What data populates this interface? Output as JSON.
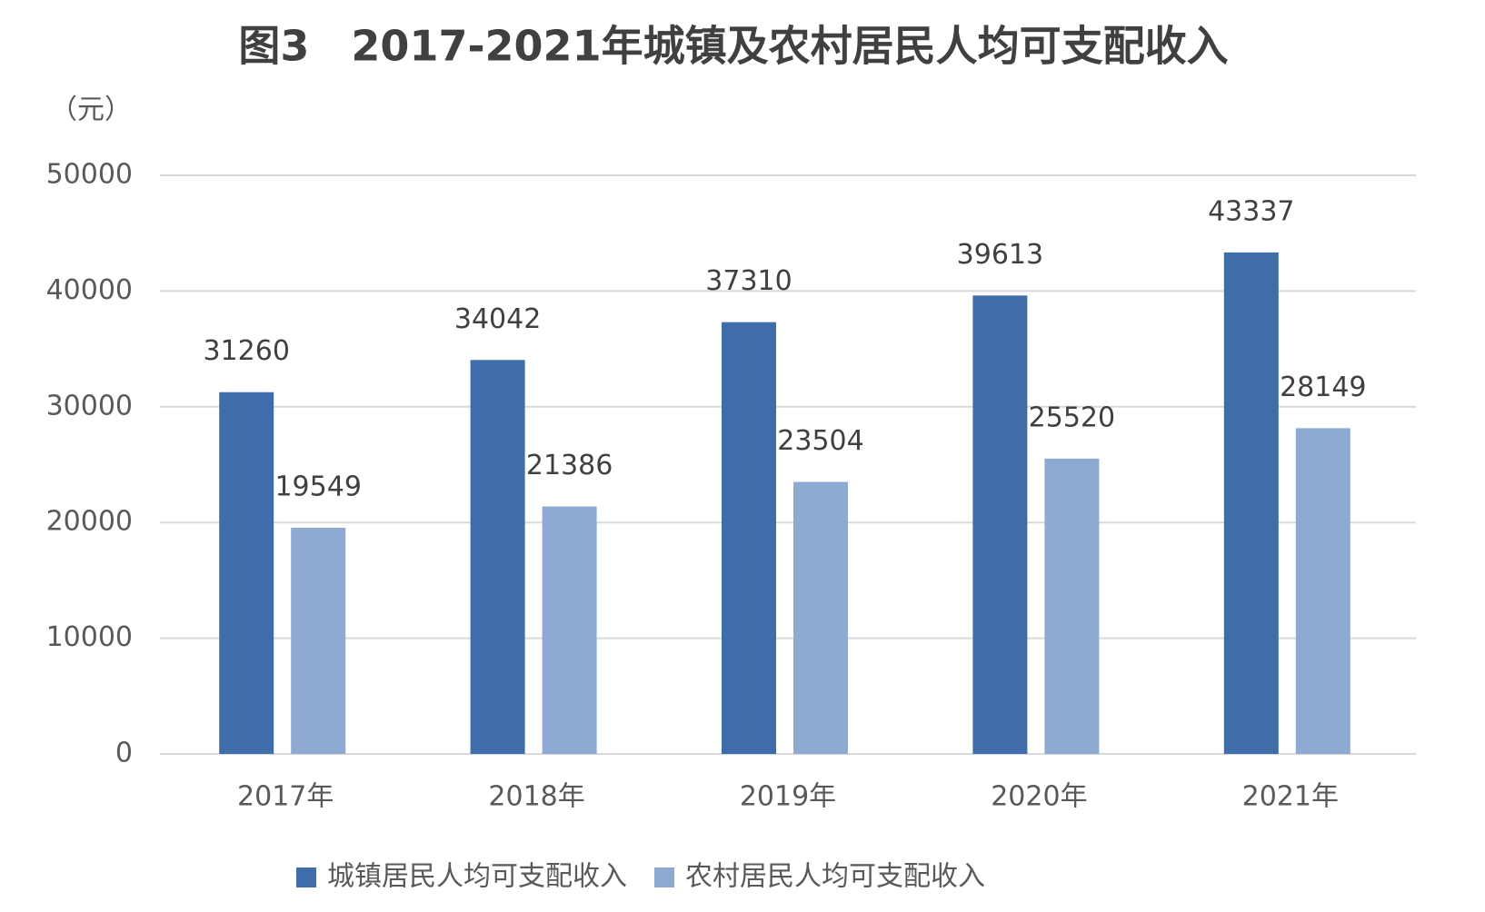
{
  "chart_data": {
    "type": "bar",
    "title": "图3　2017-2021年城镇及农村居民人均可支配收入",
    "y_label": "（元）",
    "categories": [
      "2017年",
      "2018年",
      "2019年",
      "2020年",
      "2021年"
    ],
    "series": [
      {
        "name": "城镇居民人均可支配收入",
        "color": "#3f6daa",
        "values": [
          31260,
          34042,
          37310,
          39613,
          43337
        ]
      },
      {
        "name": "农村居民人均可支配收入",
        "color": "#8eaad2",
        "values": [
          19549,
          21386,
          23504,
          25520,
          28149
        ]
      }
    ],
    "ylim": [
      0,
      50000
    ],
    "yticks": [
      0,
      10000,
      20000,
      30000,
      40000,
      50000
    ],
    "grid": true,
    "legend": "bottom"
  }
}
